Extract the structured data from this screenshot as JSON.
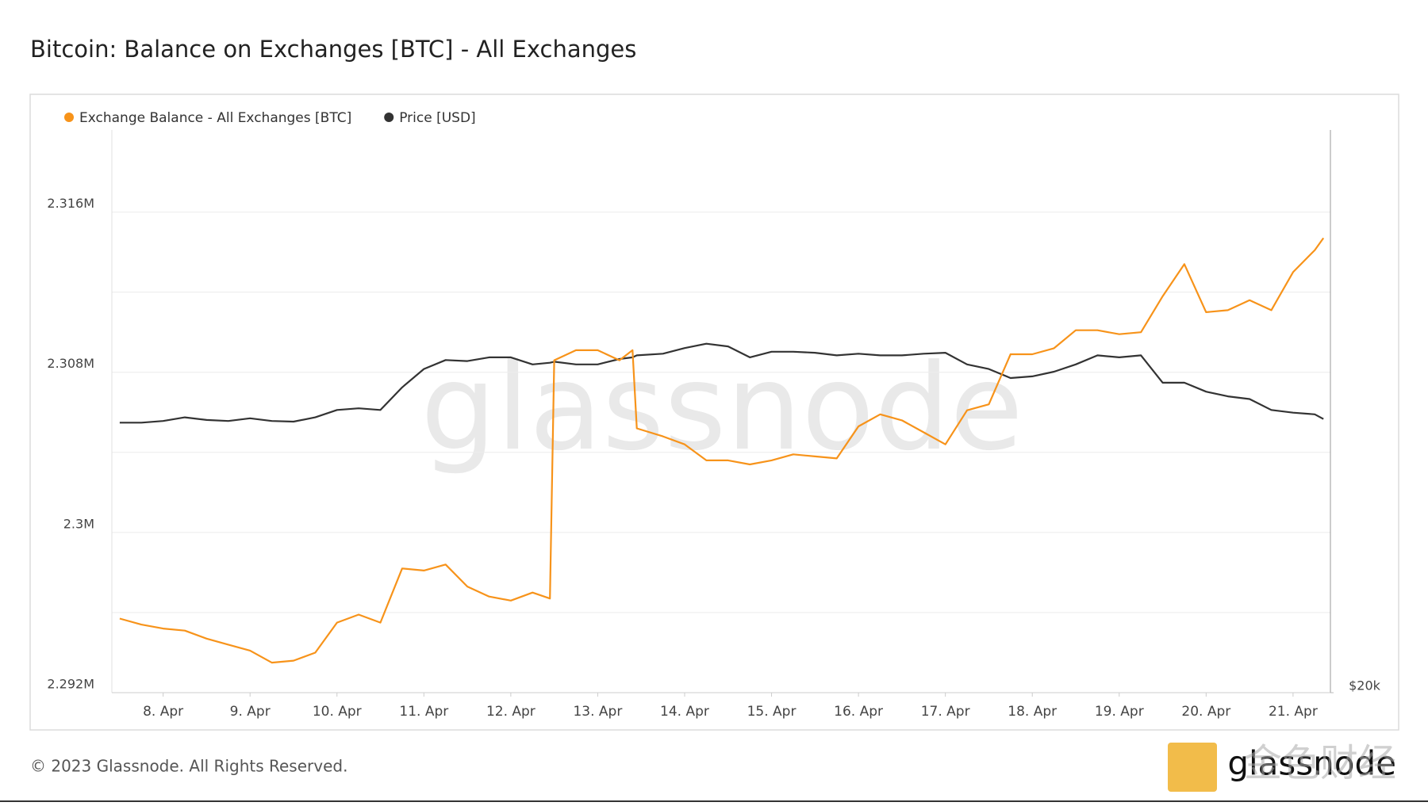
{
  "chart_data": {
    "type": "line",
    "title": "Bitcoin: Balance on Exchanges [BTC] - All Exchanges",
    "watermark": "glassnode",
    "footer": "© 2023 Glassnode. All Rights Reserved.",
    "logo": "glassnode",
    "overlay_logo": "金色财经",
    "x": [
      7.5,
      7.75,
      8,
      8.25,
      8.5,
      8.75,
      9,
      9.25,
      9.5,
      9.75,
      10,
      10.25,
      10.5,
      10.75,
      11,
      11.25,
      11.5,
      11.75,
      12,
      12.25,
      12.45,
      12.5,
      12.75,
      13,
      13.25,
      13.4,
      13.45,
      13.75,
      14,
      14.25,
      14.5,
      14.75,
      15,
      15.25,
      15.5,
      15.75,
      16,
      16.25,
      16.5,
      16.75,
      17,
      17.25,
      17.5,
      17.75,
      18,
      18.25,
      18.5,
      18.75,
      19,
      19.25,
      19.5,
      19.75,
      20,
      20.25,
      20.5,
      20.75,
      21,
      21.25,
      21.35
    ],
    "xlim": [
      7.41,
      21.43
    ],
    "xticks": [
      {
        "value": 8,
        "label": "8. Apr"
      },
      {
        "value": 9,
        "label": "9. Apr"
      },
      {
        "value": 10,
        "label": "10. Apr"
      },
      {
        "value": 11,
        "label": "11. Apr"
      },
      {
        "value": 12,
        "label": "12. Apr"
      },
      {
        "value": 13,
        "label": "13. Apr"
      },
      {
        "value": 14,
        "label": "14. Apr"
      },
      {
        "value": 15,
        "label": "15. Apr"
      },
      {
        "value": 16,
        "label": "16. Apr"
      },
      {
        "value": 17,
        "label": "17. Apr"
      },
      {
        "value": 18,
        "label": "18. Apr"
      },
      {
        "value": 19,
        "label": "19. Apr"
      },
      {
        "value": 20,
        "label": "20. Apr"
      },
      {
        "value": 21,
        "label": "21. Apr"
      }
    ],
    "ylim": [
      2292000,
      2320100
    ],
    "yticks": [
      {
        "value": 2292000,
        "label": "2.292M"
      },
      {
        "value": 2300000,
        "label": "2.3M"
      },
      {
        "value": 2308000,
        "label": "2.308M"
      },
      {
        "value": 2316000,
        "label": "2.316M"
      }
    ],
    "y_minor_ticks": [
      2296000,
      2304000,
      2312000
    ],
    "y2lim": [
      20000,
      36900
    ],
    "y2ticks": [
      {
        "value": 20000,
        "label": "$20k"
      }
    ],
    "grid": true,
    "legend": "top-left",
    "series": [
      {
        "name": "Exchange Balance - All Exchanges [BTC]",
        "color": "#f7931a",
        "values": [
          2295700,
          2295400,
          2295200,
          2295100,
          2294700,
          2294400,
          2294100,
          2293500,
          2293600,
          2294000,
          2295500,
          2295900,
          2295500,
          2298200,
          2298100,
          2298400,
          2297300,
          2296800,
          2296600,
          2297000,
          2296700,
          2308600,
          2309100,
          2309100,
          2308600,
          2309100,
          2305200,
          2304800,
          2304400,
          2303600,
          2303600,
          2303400,
          2303600,
          2303900,
          2303800,
          2303700,
          2305300,
          2305900,
          2305600,
          2305000,
          2304400,
          2306100,
          2306400,
          2308900,
          2308900,
          2309200,
          2310100,
          2310100,
          2309900,
          2310000,
          2311800,
          2313400,
          2311000,
          2311100,
          2311600,
          2311100,
          2313000,
          2314100,
          2314700
        ]
      },
      {
        "name": "Price [USD]",
        "color": "#333333",
        "axis": "y2",
        "values": [
          28110,
          28110,
          28160,
          28270,
          28190,
          28160,
          28240,
          28160,
          28140,
          28270,
          28490,
          28540,
          28490,
          29170,
          29720,
          29990,
          29960,
          30070,
          30070,
          29860,
          29910,
          29940,
          29860,
          29860,
          30020,
          30070,
          30130,
          30180,
          30350,
          30480,
          30400,
          30070,
          30240,
          30240,
          30210,
          30130,
          30180,
          30130,
          30130,
          30180,
          30210,
          29860,
          29720,
          29450,
          29500,
          29640,
          29860,
          30130,
          30070,
          30130,
          29310,
          29310,
          29040,
          28900,
          28820,
          28490,
          28410,
          28360,
          28220
        ]
      }
    ]
  }
}
